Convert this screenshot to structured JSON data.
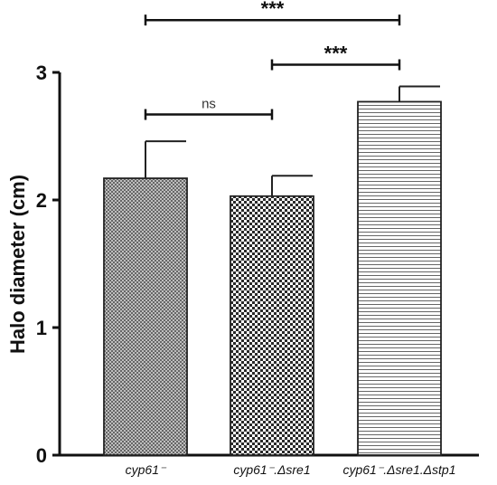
{
  "chart_data": {
    "type": "bar",
    "categories": [
      "cyp61⁻",
      "cyp61⁻.Δsre1",
      "cyp61⁻.Δsre1.Δstp1"
    ],
    "values": [
      2.17,
      2.03,
      2.77
    ],
    "errors": [
      0.29,
      0.16,
      0.12
    ],
    "patterns": [
      "fine-crosshatch",
      "checkerboard",
      "horizontal-lines"
    ],
    "ylabel": "Halo diameter (cm)",
    "ylim": [
      0,
      3
    ],
    "yticks": [
      "0",
      "1",
      "2",
      "3"
    ],
    "grid": false,
    "significance": [
      {
        "from": 0,
        "to": 1,
        "label": "ns",
        "y": 2.67
      },
      {
        "from": 1,
        "to": 2,
        "label": "***",
        "y": 3.06
      },
      {
        "from": 0,
        "to": 2,
        "label": "***",
        "y": 3.41
      }
    ],
    "colors": {
      "axis": "#111111",
      "bar_stroke": "#222222",
      "pattern": "#333333"
    }
  }
}
